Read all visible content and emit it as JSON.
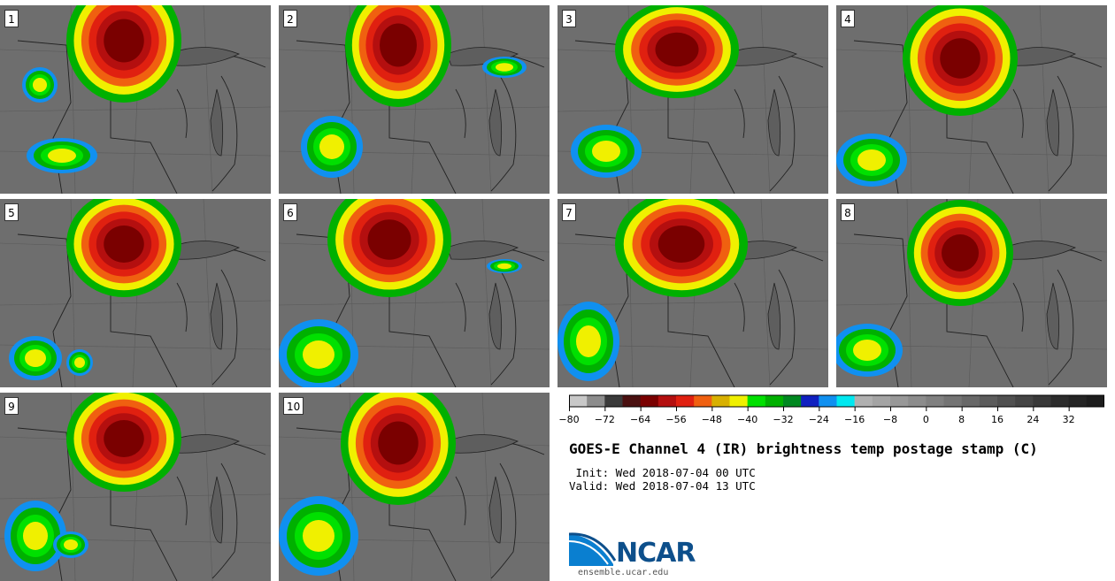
{
  "panels": [
    {
      "label": "1"
    },
    {
      "label": "2"
    },
    {
      "label": "3"
    },
    {
      "label": "4"
    },
    {
      "label": "5"
    },
    {
      "label": "6"
    },
    {
      "label": "7"
    },
    {
      "label": "8"
    },
    {
      "label": "9"
    },
    {
      "label": "10"
    }
  ],
  "colorbar": {
    "ticks": [
      "−80",
      "−72",
      "−64",
      "−56",
      "−48",
      "−40",
      "−32",
      "−24",
      "−16",
      "−8",
      "0",
      "8",
      "16",
      "24",
      "32"
    ],
    "colors": [
      "#c8c8c8",
      "#8c8c8c",
      "#3a3a3a",
      "#4a1010",
      "#7a0000",
      "#b40f0f",
      "#e02010",
      "#f06010",
      "#d8b000",
      "#f0f000",
      "#00e000",
      "#00b000",
      "#008820",
      "#1020c0",
      "#1090f0",
      "#00e8f0",
      "#b0b0b0",
      "#a4a4a4",
      "#989898",
      "#8c8c8c",
      "#808080",
      "#747474",
      "#686868",
      "#5c5c5c",
      "#505050",
      "#444444",
      "#383838",
      "#2c2c2c",
      "#242424",
      "#1c1c1c"
    ]
  },
  "title": "GOES-E Channel 4 (IR) brightness temp postage stamp (C)",
  "init": " Init: Wed 2018-07-04 00 UTC",
  "valid": "Valid: Wed 2018-07-04 13 UTC",
  "logo": {
    "name": "NCAR",
    "url": "ensemble.ucar.edu"
  }
}
